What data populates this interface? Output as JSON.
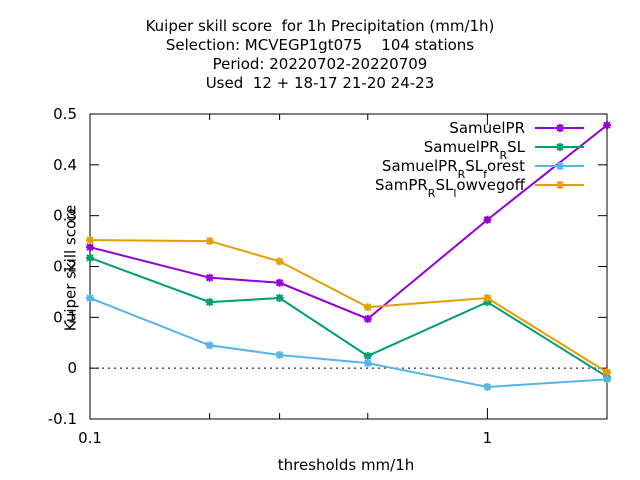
{
  "chart_data": {
    "type": "line",
    "title_lines": [
      "Kuiper skill score  for 1h Precipitation (mm/1h)",
      "Selection: MCVEGP1gt075    104 stations",
      "Period: 20220702-20220709",
      "Used  12 + 18-17 21-20 24-23"
    ],
    "xlabel": "thresholds mm/1h",
    "ylabel": "Kuiper skill score",
    "xscale": "log",
    "xlim": [
      0.1,
      2
    ],
    "ylim": [
      -0.1,
      0.5
    ],
    "xticks": [
      0.1,
      0.2,
      0.3,
      0.5,
      1,
      2
    ],
    "xtick_labels": [
      "0.1",
      "",
      "",
      "",
      "1",
      ""
    ],
    "yticks": [
      -0.1,
      0,
      0.1,
      0.2,
      0.3,
      0.4,
      0.5
    ],
    "ytick_labels": [
      "-0.1",
      "0",
      "0.1",
      "0.2",
      "0.3",
      "0.4",
      "0.5"
    ],
    "grid": false,
    "legend_position": "top-right",
    "x": [
      0.1,
      0.2,
      0.3,
      0.5,
      1,
      2
    ],
    "series": [
      {
        "name": "SamuelPR",
        "name_main": "SamuelPR",
        "name_sub": "",
        "name_after": "",
        "name_sub2": "",
        "name_after2": "",
        "color": "#9400d3",
        "values": [
          0.238,
          0.178,
          0.168,
          0.097,
          0.292,
          0.478
        ]
      },
      {
        "name": "SamuelPR_RSL",
        "name_main": "SamuelPR",
        "name_sub": "R",
        "name_after": "SL",
        "name_sub2": "",
        "name_after2": "",
        "color": "#009e73",
        "values": [
          0.217,
          0.13,
          0.138,
          0.024,
          0.13,
          -0.017
        ]
      },
      {
        "name": "SamuelPR_RSL_forest",
        "name_main": "SamuelPR",
        "name_sub": "R",
        "name_after": "SL",
        "name_sub2": "f",
        "name_after2": "orest",
        "color": "#56b4e9",
        "values": [
          0.138,
          0.045,
          0.026,
          0.01,
          -0.037,
          -0.022
        ]
      },
      {
        "name": "SamPR_RSL_lowvegoff",
        "name_main": "SamPR",
        "name_sub": "R",
        "name_after": "SL",
        "name_sub2": "l",
        "name_after2": "owvegoff",
        "color": "#e69f00",
        "values": [
          0.252,
          0.25,
          0.21,
          0.12,
          0.138,
          -0.008
        ]
      }
    ]
  }
}
